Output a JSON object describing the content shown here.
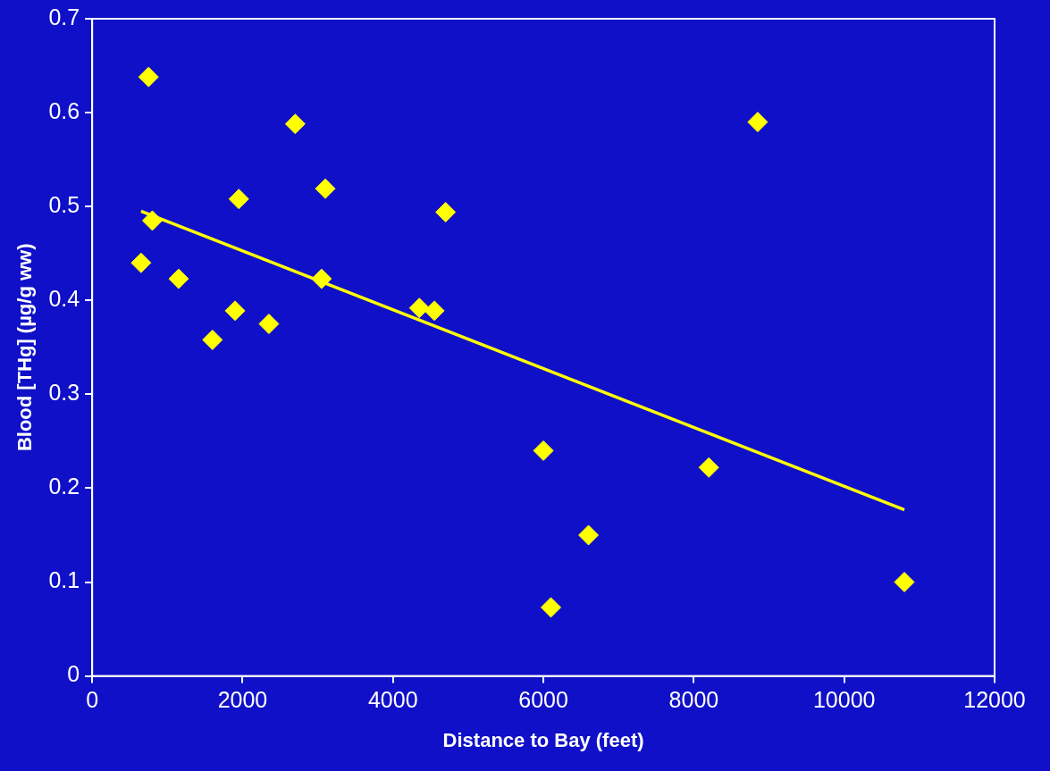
{
  "chart_data": {
    "type": "scatter",
    "x_label": "Distance to Bay (feet)",
    "y_label": "Blood [THg] (µg/g ww)",
    "xlim": [
      0,
      12000
    ],
    "xticks": [
      0,
      2000,
      4000,
      6000,
      8000,
      10000,
      12000
    ],
    "ylim": [
      0,
      0.7
    ],
    "yticks": [
      0,
      0.1,
      0.2,
      0.3,
      0.4,
      0.5,
      0.6,
      0.7
    ],
    "grid": false,
    "series": [
      {
        "type": "scatter",
        "color": "#ffff00",
        "marker": "diamond",
        "x": [
          750,
          650,
          800,
          1150,
          1600,
          1900,
          1950,
          2350,
          2700,
          3050,
          3100,
          4350,
          4550,
          4700,
          6000,
          6100,
          6600,
          8200,
          8850,
          10800
        ],
        "values": [
          0.638,
          0.44,
          0.485,
          0.423,
          0.358,
          0.389,
          0.508,
          0.375,
          0.588,
          0.423,
          0.519,
          0.392,
          0.389,
          0.494,
          0.24,
          0.073,
          0.15,
          0.222,
          0.59,
          0.1
        ]
      },
      {
        "type": "line",
        "color": "#ffff00",
        "line_style": "solid",
        "x": [
          650,
          10800
        ],
        "values": [
          0.495,
          0.177
        ]
      }
    ]
  }
}
